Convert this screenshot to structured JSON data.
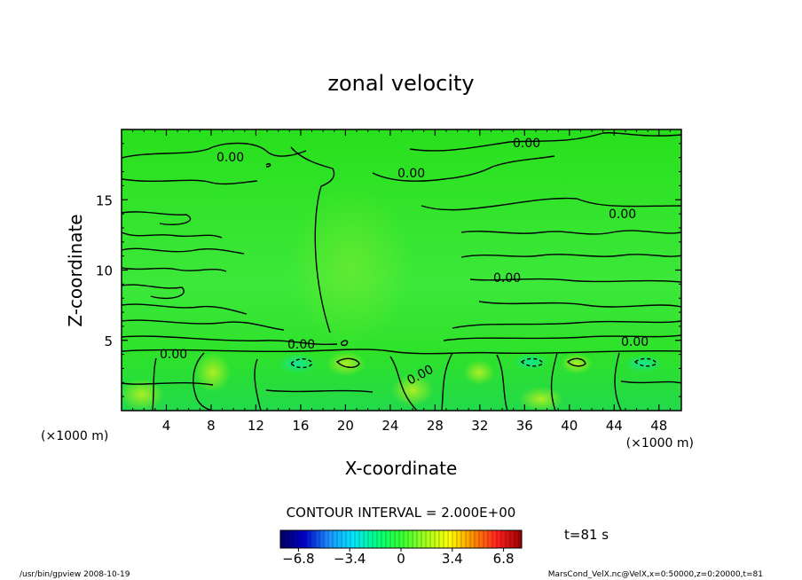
{
  "chart_data": {
    "type": "heatmap",
    "title": "zonal velocity",
    "xlabel": "X-coordinate",
    "ylabel": "Z-coordinate",
    "x_unit": "(×1000 m)",
    "y_unit": "(×1000 m)",
    "xlim": [
      0,
      50
    ],
    "ylim": [
      0,
      20
    ],
    "x_ticks": [
      4,
      8,
      12,
      16,
      20,
      24,
      28,
      32,
      36,
      40,
      44,
      48
    ],
    "y_ticks": [
      5,
      10,
      15
    ],
    "contour_interval_text": "CONTOUR INTERVAL = 2.000E+00",
    "contour_labels": [
      "0.00",
      "0.00",
      "0.00",
      "0.00",
      "0.00",
      "0.00",
      "0.00",
      "0.00",
      "0.00"
    ],
    "colorbar": {
      "range": [
        -8,
        8
      ],
      "ticks": [
        -6.8,
        -3.4,
        0,
        3.4,
        6.8
      ],
      "tick_labels": [
        "−6.8",
        "−3.4",
        "0",
        "3.4",
        "6.8"
      ],
      "colors": [
        "#000066",
        "#0000cc",
        "#1e90ff",
        "#00e5ff",
        "#00ff7f",
        "#33ff33",
        "#a0ff20",
        "#ffff00",
        "#ff8c00",
        "#ff2020",
        "#990000"
      ]
    },
    "time_label": "t=81 s",
    "grid": false,
    "legend": "none"
  },
  "footer": {
    "left": "/usr/bin/gpview   2008-10-19",
    "right": "MarsCond_VelX.nc@VelX,x=0:50000,z=0:20000,t=81"
  }
}
